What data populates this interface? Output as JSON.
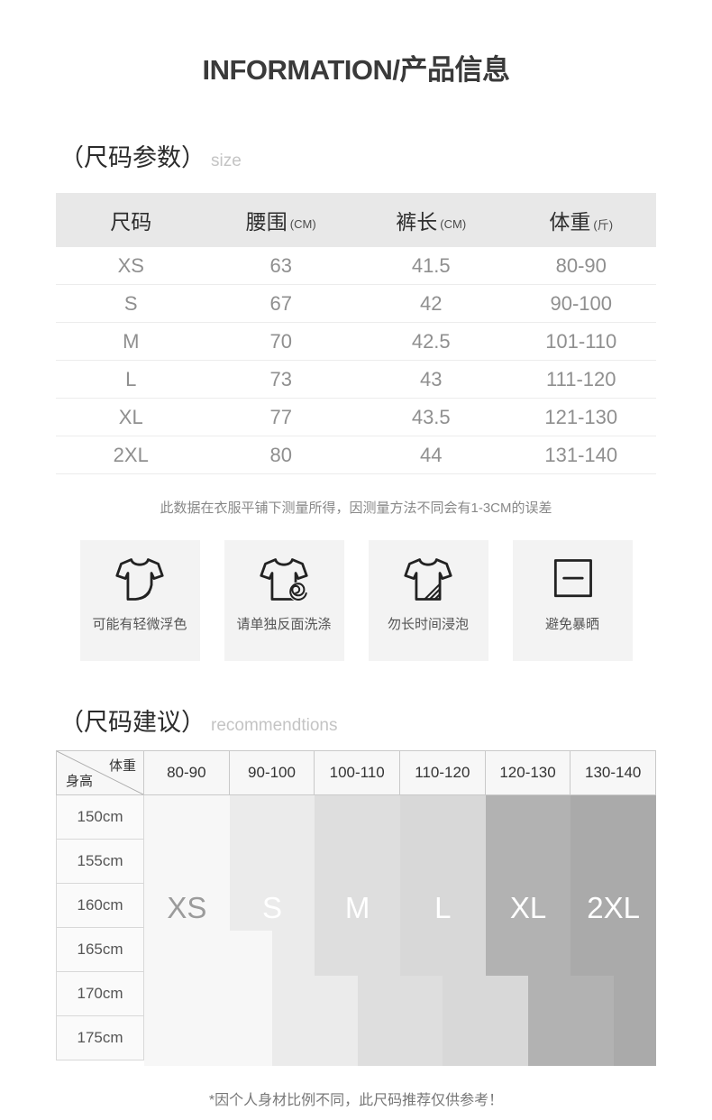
{
  "page": {
    "title": "INFORMATION/产品信息",
    "footer_note": "*因个人身材比例不同，此尺码推荐仅供参考！"
  },
  "size_section": {
    "heading_cn": "（尺码参数）",
    "heading_en": "size",
    "table": {
      "columns": [
        {
          "label": "尺码",
          "unit": ""
        },
        {
          "label": "腰围",
          "unit": "(CM)"
        },
        {
          "label": "裤长",
          "unit": "(CM)"
        },
        {
          "label": "体重",
          "unit": "(斤)"
        }
      ],
      "rows": [
        [
          "XS",
          "63",
          "41.5",
          "80-90"
        ],
        [
          "S",
          "67",
          "42",
          "90-100"
        ],
        [
          "M",
          "70",
          "42.5",
          "101-110"
        ],
        [
          "L",
          "73",
          "43",
          "111-120"
        ],
        [
          "XL",
          "77",
          "43.5",
          "121-130"
        ],
        [
          "2XL",
          "80",
          "44",
          "131-140"
        ]
      ]
    },
    "note": "此数据在衣服平铺下测量所得，因测量方法不同会有1-3CM的误差"
  },
  "care": {
    "items": [
      {
        "icon": "tshirt-fold-corner-icon",
        "label": "可能有轻微浮色"
      },
      {
        "icon": "tshirt-spiral-icon",
        "label": "请单独反面洗涤"
      },
      {
        "icon": "tshirt-hatched-corner-icon",
        "label": "勿长时间浸泡"
      },
      {
        "icon": "dry-flat-square-icon",
        "label": "避免暴晒"
      }
    ]
  },
  "recommendation_section": {
    "heading_cn": "（尺码建议）",
    "heading_en": "recommendtions"
  },
  "chart_data": {
    "type": "heatmap",
    "title": "尺码建议 (size recommendation by height and weight)",
    "corner_top": "体重",
    "corner_bottom": "身高",
    "weight_columns": [
      "80-90",
      "90-100",
      "100-110",
      "110-120",
      "120-130",
      "130-140"
    ],
    "height_rows": [
      "150cm",
      "155cm",
      "160cm",
      "165cm",
      "170cm",
      "175cm"
    ],
    "bands": [
      {
        "label": "XS",
        "color": "#f7f7f7",
        "label_color": "#9b9b9b",
        "column_index": 0,
        "shift_start_row": null
      },
      {
        "label": "S",
        "color": "#ebebeb",
        "label_color": "#ffffff",
        "column_index": 1,
        "shift_start_row": 3
      },
      {
        "label": "M",
        "color": "#dedede",
        "label_color": "#ffffff",
        "column_index": 2,
        "shift_start_row": 4
      },
      {
        "label": "L",
        "color": "#d8d8d8",
        "label_color": "#ffffff",
        "column_index": 3,
        "shift_start_row": 4
      },
      {
        "label": "XL",
        "color": "#b2b2b2",
        "label_color": "#ffffff",
        "column_index": 4,
        "shift_start_row": 4
      },
      {
        "label": "2XL",
        "color": "#aaaaaa",
        "label_color": "#ffffff",
        "column_index": 5,
        "shift_start_row": 4
      }
    ],
    "band_shift": "half column to the right for rows >= shift_start_row",
    "label_row_center": 2.5,
    "grid": false,
    "legend": "none"
  }
}
